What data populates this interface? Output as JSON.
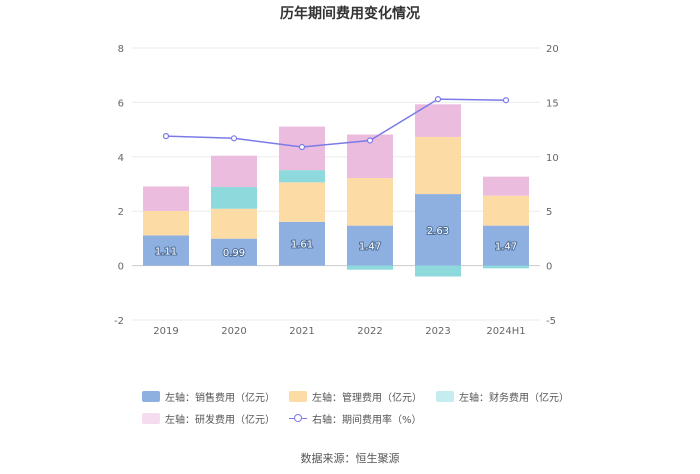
{
  "chart_data": {
    "type": "bar",
    "title": "历年期间费用变化情况",
    "categories": [
      "2019",
      "2020",
      "2021",
      "2022",
      "2023",
      "2024H1"
    ],
    "left_axis": {
      "ylim": [
        -2,
        8
      ],
      "ticks": [
        "8",
        "6",
        "4",
        "2",
        "0",
        "-2"
      ],
      "tick_values": [
        8,
        6,
        4,
        2,
        0,
        -2
      ]
    },
    "right_axis": {
      "ylim": [
        -5,
        20
      ],
      "ticks": [
        "20",
        "15",
        "10",
        "5",
        "0",
        "-5"
      ],
      "tick_values": [
        20,
        15,
        10,
        5,
        0,
        -5
      ]
    },
    "series": [
      {
        "name": "左轴：销售费用（亿元）",
        "kind": "bar",
        "axis": "left",
        "color": "#8eb0e0",
        "values": [
          1.11,
          0.99,
          1.61,
          1.47,
          2.63,
          1.47
        ],
        "labels": [
          "1.11",
          "0.99",
          "1.61",
          "1.47",
          "2.63",
          "1.47"
        ]
      },
      {
        "name": "左轴：管理费用（亿元）",
        "kind": "bar",
        "axis": "left",
        "color": "#fddba4",
        "values": [
          0.9,
          1.1,
          1.45,
          1.75,
          2.1,
          1.1
        ]
      },
      {
        "name": "左轴：财务费用（亿元）",
        "kind": "bar",
        "axis": "left",
        "color": "#8dd9dc",
        "values": [
          0.0,
          0.8,
          0.45,
          -0.15,
          -0.4,
          -0.1
        ]
      },
      {
        "name": "左轴：研发费用（亿元）",
        "kind": "bar",
        "axis": "left",
        "color": "#ebbcdd",
        "values": [
          0.9,
          1.15,
          1.6,
          1.6,
          1.2,
          0.7
        ]
      },
      {
        "name": "右轴：期间费用率（%）",
        "kind": "line",
        "axis": "right",
        "color": "#7b7be8",
        "values": [
          11.9,
          11.7,
          10.9,
          11.5,
          15.3,
          15.2
        ]
      }
    ]
  },
  "legend": [
    {
      "label": "左轴：销售费用（亿元）",
      "color": "#8eb0e0",
      "kind": "bar"
    },
    {
      "label": "左轴：管理费用（亿元）",
      "color": "#fddba4",
      "kind": "bar"
    },
    {
      "label": "左轴：财务费用（亿元）",
      "color": "#c5ecee",
      "kind": "bar"
    },
    {
      "label": "左轴：研发费用（亿元）",
      "color": "#f5dcee",
      "kind": "bar"
    },
    {
      "label": "右轴：期间费用率（%）",
      "color": "#7b7be8",
      "kind": "line"
    }
  ],
  "source": "数据来源：恒生聚源"
}
